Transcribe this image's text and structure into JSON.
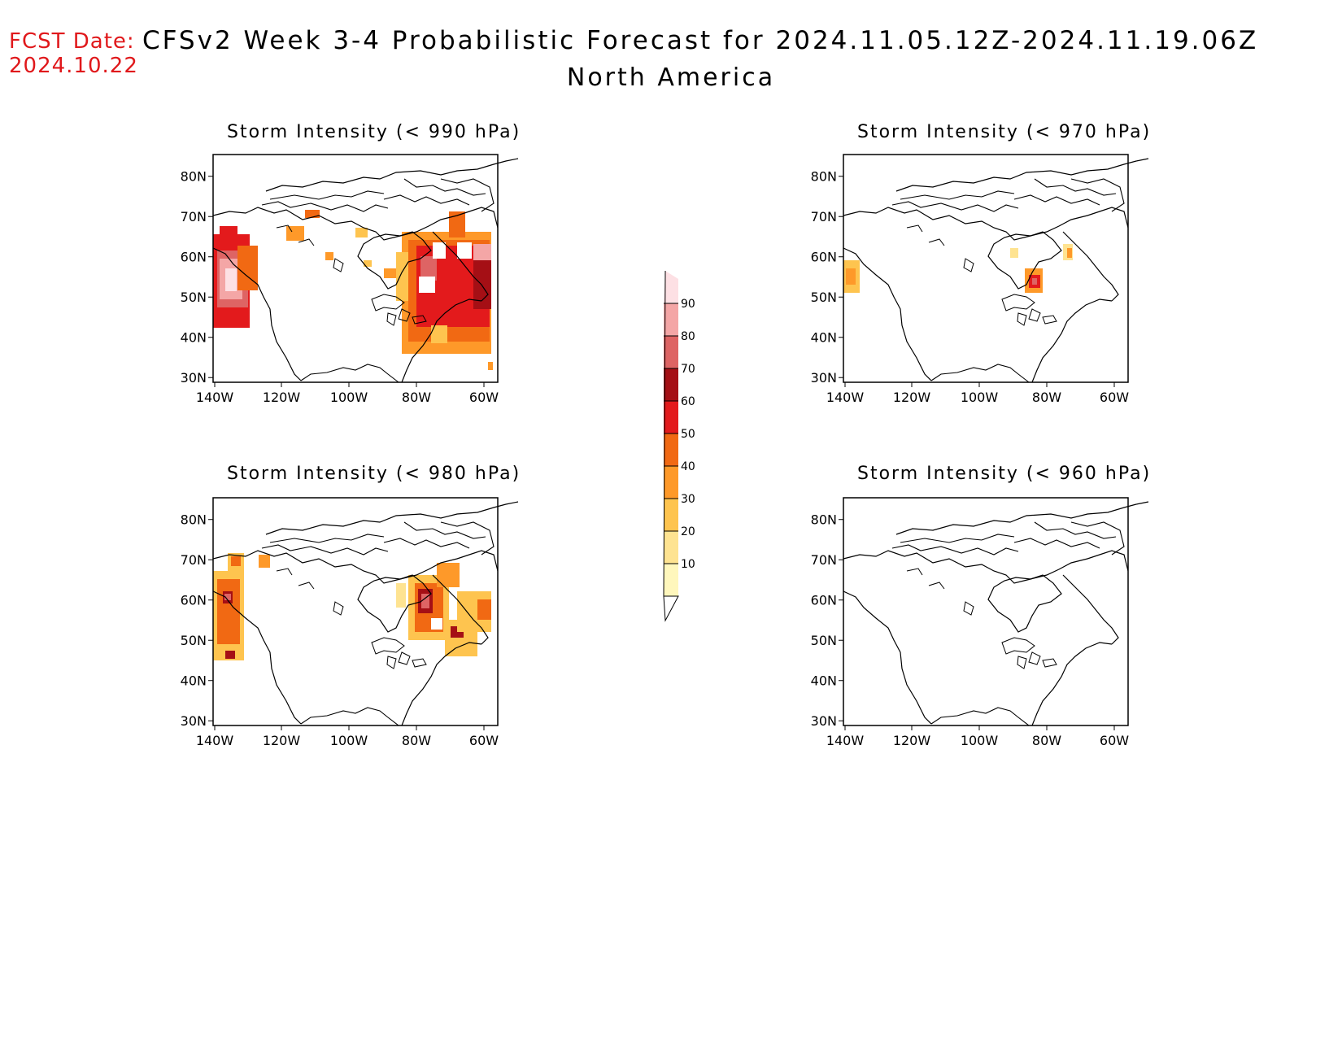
{
  "header": {
    "fcst_line1": "FCST Date:",
    "fcst_line2": "2024.10.22",
    "title": "CFSv2 Week 3-4 Probabilistic Forecast for 2024.11.05.12Z-2024.11.19.06Z",
    "subtitle": "North America"
  },
  "lat_labels": [
    "80N",
    "70N",
    "60N",
    "50N",
    "40N",
    "30N"
  ],
  "lon_labels": [
    "140W",
    "120W",
    "100W",
    "80W",
    "60W"
  ],
  "panels": [
    {
      "id": "p990",
      "title": "Storm Intensity (< 990 hPa)"
    },
    {
      "id": "p970",
      "title": "Storm Intensity (< 970 hPa)"
    },
    {
      "id": "p980",
      "title": "Storm Intensity (< 980 hPa)"
    },
    {
      "id": "p960",
      "title": "Storm Intensity (< 960 hPa)"
    }
  ],
  "colorbar": {
    "levels": [
      "10",
      "20",
      "30",
      "40",
      "50",
      "60",
      "70",
      "80",
      "90"
    ],
    "colors": {
      "c10": "#fff7bc",
      "c20": "#fee391",
      "c30": "#fec44f",
      "c40": "#fe9929",
      "c50": "#f16913",
      "c60": "#e31a1c",
      "c70": "#a50f15",
      "c80": "#de6464",
      "c90": "#f4a6a6",
      "c100": "#fde0e4"
    }
  }
}
